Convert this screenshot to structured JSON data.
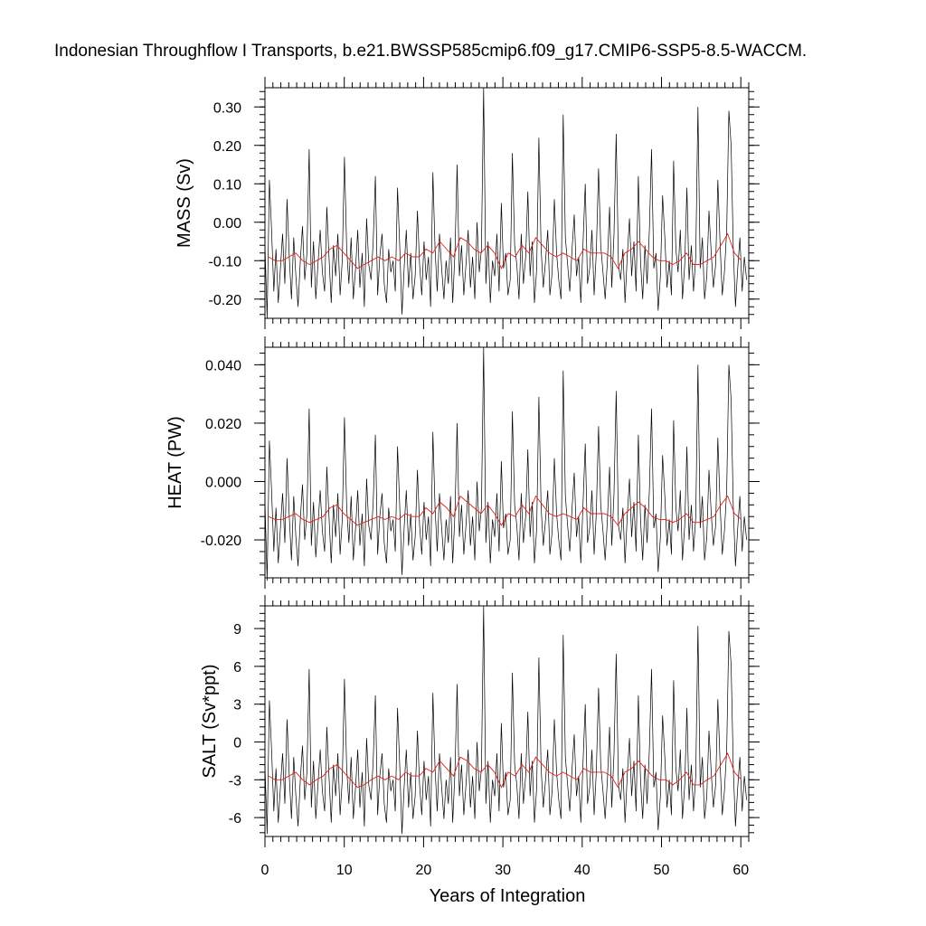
{
  "title": "Indonesian Throughflow I Transports, b.e21.BWSSP585cmip6.f09_g17.CMIP6-SSP5-8.5-WACCM.",
  "xlabel": "Years of Integration",
  "colors": {
    "monthly": "#000000",
    "annual": "#e0201c"
  },
  "chart_data": [
    {
      "type": "line",
      "ylabel": "MASS (Sv)",
      "xlim": [
        0,
        61
      ],
      "ylim": [
        -0.25,
        0.35
      ],
      "x_ticks": [
        0,
        10,
        20,
        30,
        40,
        50,
        60
      ],
      "y_ticks": [
        -0.2,
        -0.1,
        0.0,
        0.1,
        0.2,
        0.3
      ],
      "y_tick_labels": [
        "-0.20",
        "-0.10",
        "0.00",
        "0.10",
        "0.20",
        "0.30"
      ],
      "series": [
        {
          "values": [
            -0.06,
            -0.25,
            0.11,
            -0.02,
            -0.18,
            -0.07,
            -0.21,
            -0.12,
            -0.03,
            -0.16,
            0.06,
            -0.09,
            -0.2,
            -0.04,
            -0.14,
            -0.22,
            -0.1,
            -0.01,
            -0.15,
            -0.08,
            0.19,
            -0.17,
            -0.05,
            -0.2,
            -0.11,
            -0.02,
            -0.13,
            -0.18,
            0.04,
            -0.09,
            -0.21,
            -0.06,
            -0.14,
            -0.03,
            -0.19,
            -0.1,
            0.17,
            -0.07,
            -0.16,
            -0.04,
            -0.2,
            -0.12,
            -0.02,
            -0.17,
            -0.08,
            -0.22,
            0.01,
            -0.11,
            -0.15,
            -0.05,
            0.12,
            -0.19,
            -0.09,
            -0.03,
            -0.16,
            -0.21,
            -0.07,
            -0.13,
            -0.1,
            -0.18,
            0.09,
            -0.06,
            -0.24,
            -0.12,
            -0.02,
            -0.17,
            -0.08,
            -0.2,
            -0.14,
            0.03,
            -0.11,
            -0.19,
            -0.05,
            -0.15,
            -0.09,
            -0.22,
            0.13,
            -0.07,
            -0.18,
            -0.03,
            -0.12,
            -0.2,
            -0.1,
            -0.16,
            -0.04,
            -0.21,
            -0.08,
            0.15,
            -0.14,
            -0.06,
            -0.19,
            -0.11,
            -0.02,
            -0.17,
            -0.09,
            -0.2,
            0.0,
            -0.13,
            -0.07,
            0.35,
            -0.16,
            -0.05,
            -0.21,
            -0.1,
            -0.14,
            -0.03,
            -0.18,
            0.05,
            -0.12,
            -0.08,
            -0.19,
            -0.15,
            0.18,
            -0.06,
            -0.11,
            -0.2,
            -0.03,
            -0.16,
            -0.09,
            0.08,
            -0.14,
            -0.05,
            -0.21,
            -0.12,
            0.22,
            -0.07,
            -0.17,
            -0.1,
            -0.02,
            -0.19,
            -0.13,
            0.06,
            -0.08,
            -0.15,
            -0.2,
            0.28,
            -0.04,
            -0.11,
            -0.18,
            -0.07,
            0.02,
            -0.14,
            -0.09,
            -0.21,
            -0.05,
            0.1,
            -0.16,
            -0.12,
            -0.02,
            -0.19,
            -0.08,
            0.14,
            -0.06,
            -0.13,
            -0.2,
            -0.1,
            0.04,
            -0.17,
            -0.03,
            0.23,
            -0.11,
            -0.15,
            -0.07,
            -0.21,
            -0.09,
            0.01,
            -0.14,
            -0.05,
            -0.18,
            0.12,
            -0.1,
            -0.2,
            -0.06,
            -0.16,
            -0.02,
            0.19,
            -0.12,
            -0.08,
            -0.23,
            -0.14,
            0.07,
            -0.04,
            -0.17,
            -0.1,
            -0.19,
            0.16,
            -0.07,
            -0.13,
            -0.02,
            -0.2,
            -0.11,
            0.09,
            -0.15,
            -0.06,
            -0.18,
            -0.09,
            0.3,
            -0.12,
            -0.04,
            -0.2,
            -0.14,
            0.03,
            -0.08,
            -0.17,
            -0.11,
            0.11,
            -0.05,
            -0.19,
            -0.13,
            -0.02,
            0.29,
            0.2,
            -0.07,
            -0.22,
            -0.12,
            -0.04,
            -0.18,
            -0.09,
            -0.15
          ]
        },
        {
          "values": [
            -0.09,
            -0.1,
            -0.1,
            -0.09,
            -0.08,
            -0.1,
            -0.11,
            -0.1,
            -0.09,
            -0.07,
            -0.06,
            -0.08,
            -0.1,
            -0.12,
            -0.11,
            -0.1,
            -0.09,
            -0.1,
            -0.09,
            -0.1,
            -0.08,
            -0.09,
            -0.09,
            -0.07,
            -0.08,
            -0.05,
            -0.07,
            -0.09,
            -0.04,
            -0.05,
            -0.07,
            -0.08,
            -0.06,
            -0.08,
            -0.12,
            -0.08,
            -0.09,
            -0.06,
            -0.08,
            -0.04,
            -0.06,
            -0.08,
            -0.09,
            -0.08,
            -0.09,
            -0.1,
            -0.07,
            -0.08,
            -0.08,
            -0.08,
            -0.09,
            -0.12,
            -0.08,
            -0.07,
            -0.05,
            -0.07,
            -0.09,
            -0.1,
            -0.1,
            -0.11,
            -0.1,
            -0.08,
            -0.11,
            -0.11,
            -0.1,
            -0.09,
            -0.06,
            -0.03,
            -0.08,
            -0.1
          ]
        }
      ]
    },
    {
      "type": "line",
      "ylabel": "HEAT (PW)",
      "xlim": [
        0,
        61
      ],
      "ylim": [
        -0.033,
        0.046
      ],
      "x_ticks": [
        0,
        10,
        20,
        30,
        40,
        50,
        60
      ],
      "y_ticks": [
        -0.02,
        0.0,
        0.02,
        0.04
      ],
      "y_tick_labels": [
        "-0.020",
        "0.000",
        "0.020",
        "0.040"
      ],
      "series": [
        {
          "values": [
            -0.007,
            -0.034,
            0.014,
            -0.003,
            -0.024,
            -0.009,
            -0.028,
            -0.016,
            -0.004,
            -0.021,
            0.008,
            -0.012,
            -0.027,
            -0.005,
            -0.019,
            -0.029,
            -0.013,
            -0.001,
            -0.02,
            -0.011,
            0.025,
            -0.022,
            -0.007,
            -0.026,
            -0.015,
            -0.003,
            -0.017,
            -0.024,
            0.005,
            -0.012,
            -0.028,
            -0.008,
            -0.019,
            -0.004,
            -0.025,
            -0.013,
            0.022,
            -0.009,
            -0.021,
            -0.005,
            -0.027,
            -0.016,
            -0.003,
            -0.022,
            -0.011,
            -0.029,
            0.001,
            -0.015,
            -0.02,
            -0.007,
            0.016,
            -0.025,
            -0.012,
            -0.004,
            -0.021,
            -0.028,
            -0.009,
            -0.017,
            -0.013,
            -0.024,
            0.012,
            -0.008,
            -0.032,
            -0.016,
            -0.003,
            -0.022,
            -0.011,
            -0.027,
            -0.019,
            0.004,
            -0.015,
            -0.025,
            -0.007,
            -0.02,
            -0.012,
            -0.029,
            0.017,
            -0.009,
            -0.024,
            -0.004,
            -0.016,
            -0.027,
            -0.013,
            -0.021,
            -0.005,
            -0.028,
            -0.011,
            0.02,
            -0.019,
            -0.008,
            -0.025,
            -0.015,
            -0.003,
            -0.022,
            -0.012,
            -0.027,
            0.0,
            -0.017,
            -0.009,
            0.046,
            -0.021,
            -0.007,
            -0.028,
            -0.013,
            -0.019,
            -0.004,
            -0.024,
            0.007,
            -0.016,
            -0.011,
            -0.025,
            -0.02,
            0.024,
            -0.008,
            -0.015,
            -0.027,
            -0.004,
            -0.021,
            -0.012,
            0.011,
            -0.019,
            -0.007,
            -0.028,
            -0.016,
            0.029,
            -0.009,
            -0.022,
            -0.013,
            -0.003,
            -0.025,
            -0.017,
            0.008,
            -0.011,
            -0.02,
            -0.027,
            0.038,
            -0.005,
            -0.015,
            -0.024,
            -0.009,
            0.003,
            -0.019,
            -0.012,
            -0.028,
            -0.007,
            0.013,
            -0.021,
            -0.016,
            -0.003,
            -0.025,
            -0.011,
            0.019,
            -0.008,
            -0.017,
            -0.027,
            -0.013,
            0.005,
            -0.022,
            -0.004,
            0.031,
            -0.015,
            -0.02,
            -0.009,
            -0.028,
            -0.012,
            0.001,
            -0.019,
            -0.007,
            -0.024,
            0.016,
            -0.013,
            -0.027,
            -0.008,
            -0.021,
            -0.003,
            0.025,
            -0.016,
            -0.011,
            -0.031,
            -0.019,
            0.009,
            -0.005,
            -0.022,
            -0.013,
            -0.025,
            0.021,
            -0.009,
            -0.017,
            -0.003,
            -0.027,
            -0.015,
            0.012,
            -0.02,
            -0.008,
            -0.024,
            -0.012,
            0.04,
            -0.016,
            -0.005,
            -0.027,
            -0.019,
            0.004,
            -0.011,
            -0.022,
            -0.015,
            0.015,
            -0.007,
            -0.025,
            -0.017,
            -0.003,
            0.04,
            0.028,
            -0.009,
            -0.029,
            -0.016,
            -0.005,
            -0.024,
            -0.012,
            -0.02
          ]
        },
        {
          "values": [
            -0.012,
            -0.013,
            -0.013,
            -0.012,
            -0.011,
            -0.013,
            -0.014,
            -0.013,
            -0.012,
            -0.009,
            -0.008,
            -0.011,
            -0.013,
            -0.015,
            -0.014,
            -0.013,
            -0.012,
            -0.013,
            -0.012,
            -0.013,
            -0.011,
            -0.012,
            -0.012,
            -0.009,
            -0.011,
            -0.007,
            -0.009,
            -0.012,
            -0.005,
            -0.007,
            -0.009,
            -0.011,
            -0.008,
            -0.011,
            -0.015,
            -0.011,
            -0.012,
            -0.008,
            -0.011,
            -0.005,
            -0.008,
            -0.011,
            -0.012,
            -0.011,
            -0.012,
            -0.013,
            -0.009,
            -0.011,
            -0.011,
            -0.011,
            -0.012,
            -0.015,
            -0.011,
            -0.009,
            -0.007,
            -0.009,
            -0.012,
            -0.013,
            -0.013,
            -0.014,
            -0.013,
            -0.011,
            -0.014,
            -0.014,
            -0.013,
            -0.012,
            -0.008,
            -0.005,
            -0.011,
            -0.013
          ]
        }
      ]
    },
    {
      "type": "line",
      "ylabel": "SALT (Sv*ppt)",
      "xlim": [
        0,
        61
      ],
      "ylim": [
        -7.5,
        10.8
      ],
      "x_ticks": [
        0,
        10,
        20,
        30,
        40,
        50,
        60
      ],
      "y_ticks": [
        -6,
        -3,
        0,
        3,
        6,
        9
      ],
      "y_tick_labels": [
        "-6",
        "-3",
        "0",
        "3",
        "6",
        "9"
      ],
      "series": [
        {
          "values": [
            -1.9,
            -7.3,
            3.3,
            -0.6,
            -5.5,
            -2.1,
            -6.4,
            -3.6,
            -0.9,
            -4.9,
            1.8,
            -2.7,
            -6.1,
            -1.2,
            -4.3,
            -6.7,
            -3.0,
            -0.3,
            -4.6,
            -2.4,
            5.8,
            -5.2,
            -1.5,
            -6.1,
            -3.4,
            -0.6,
            -3.9,
            -5.5,
            1.2,
            -2.7,
            -6.4,
            -1.8,
            -4.3,
            -0.9,
            -5.8,
            -3.0,
            5.0,
            -2.1,
            -4.9,
            -1.2,
            -6.1,
            -3.6,
            -0.6,
            -5.2,
            -2.4,
            -6.7,
            0.3,
            -3.4,
            -4.6,
            -1.5,
            3.7,
            -5.8,
            -2.7,
            -0.9,
            -4.9,
            -6.4,
            -2.1,
            -3.9,
            -3.0,
            -5.5,
            2.7,
            -1.8,
            -7.3,
            -3.6,
            -0.6,
            -5.2,
            -2.4,
            -6.1,
            -4.3,
            0.9,
            -3.4,
            -5.8,
            -1.5,
            -4.6,
            -2.7,
            -6.7,
            3.9,
            -2.1,
            -5.5,
            -0.9,
            -3.6,
            -6.1,
            -3.0,
            -4.9,
            -1.2,
            -6.4,
            -2.4,
            4.6,
            -4.3,
            -1.8,
            -5.8,
            -3.4,
            -0.6,
            -5.2,
            -2.7,
            -6.1,
            0.0,
            -3.9,
            -2.1,
            10.8,
            -4.9,
            -1.5,
            -6.4,
            -3.0,
            -4.3,
            -0.9,
            -5.5,
            1.5,
            -3.6,
            -2.4,
            -5.8,
            -4.6,
            5.5,
            -1.8,
            -3.4,
            -6.1,
            -0.9,
            -4.9,
            -2.7,
            2.4,
            -4.3,
            -1.5,
            -6.4,
            -3.6,
            6.7,
            -2.1,
            -5.2,
            -3.0,
            -0.6,
            -5.8,
            -3.9,
            1.8,
            -2.4,
            -4.6,
            -6.1,
            8.5,
            -1.2,
            -3.4,
            -5.5,
            -2.1,
            0.6,
            -4.3,
            -2.7,
            -6.4,
            -1.5,
            3.0,
            -4.9,
            -3.6,
            -0.6,
            -5.8,
            -2.4,
            4.3,
            -1.8,
            -3.9,
            -6.1,
            -3.0,
            1.2,
            -5.2,
            -0.9,
            7.0,
            -3.4,
            -4.6,
            -2.1,
            -6.4,
            -2.7,
            0.3,
            -4.3,
            -1.5,
            -5.5,
            3.7,
            -3.0,
            -6.1,
            -1.8,
            -4.9,
            -0.6,
            5.8,
            -3.6,
            -2.4,
            -7.0,
            -4.3,
            2.1,
            -1.2,
            -5.2,
            -3.0,
            -5.8,
            4.9,
            -2.1,
            -3.9,
            -0.6,
            -6.1,
            -3.4,
            2.7,
            -4.6,
            -1.8,
            -5.5,
            -2.7,
            9.2,
            -3.6,
            -1.2,
            -6.1,
            -4.3,
            0.9,
            -2.4,
            -5.2,
            -3.4,
            3.4,
            -1.5,
            -5.8,
            -3.9,
            -0.6,
            8.8,
            6.1,
            -2.1,
            -6.7,
            -3.6,
            -1.2,
            -5.5,
            -2.7,
            -4.6
          ]
        },
        {
          "values": [
            -2.7,
            -3.0,
            -3.0,
            -2.7,
            -2.4,
            -3.0,
            -3.4,
            -3.0,
            -2.7,
            -2.1,
            -1.8,
            -2.4,
            -3.0,
            -3.6,
            -3.4,
            -3.0,
            -2.7,
            -3.0,
            -2.7,
            -3.0,
            -2.4,
            -2.7,
            -2.7,
            -2.1,
            -2.4,
            -1.5,
            -2.1,
            -2.7,
            -1.2,
            -1.5,
            -2.1,
            -2.4,
            -1.8,
            -2.4,
            -3.6,
            -2.4,
            -2.7,
            -1.8,
            -2.4,
            -1.2,
            -1.8,
            -2.4,
            -2.7,
            -2.4,
            -2.7,
            -3.0,
            -2.1,
            -2.4,
            -2.4,
            -2.4,
            -2.7,
            -3.6,
            -2.4,
            -2.1,
            -1.5,
            -2.1,
            -2.7,
            -3.0,
            -3.0,
            -3.4,
            -3.0,
            -2.4,
            -3.4,
            -3.4,
            -3.0,
            -2.7,
            -1.8,
            -0.9,
            -2.4,
            -3.0
          ]
        }
      ]
    }
  ]
}
